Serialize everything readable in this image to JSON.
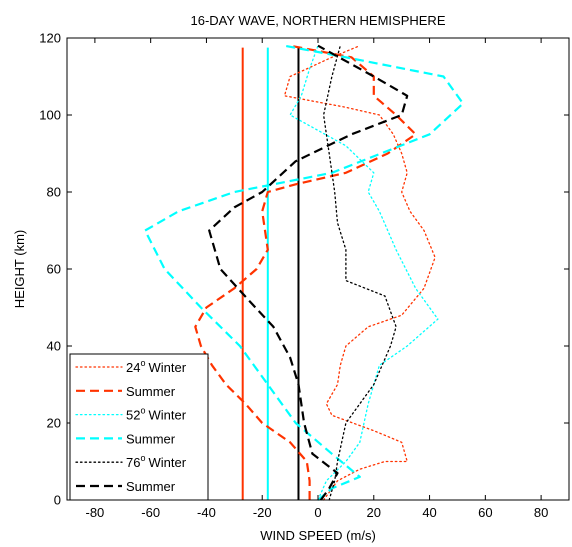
{
  "chart_data": {
    "type": "line",
    "title": "16-DAY WAVE, NORTHERN HEMISPHERE",
    "xlabel": "WIND SPEED (m/s)",
    "ylabel": "HEIGHT (km)",
    "xlim": [
      -90,
      90
    ],
    "ylim": [
      0,
      120
    ],
    "xticks": [
      -80,
      -60,
      -40,
      -20,
      0,
      20,
      40,
      60,
      80
    ],
    "yticks": [
      0,
      20,
      40,
      60,
      80,
      100,
      120
    ],
    "grid": false,
    "legend_position": "bottom-left",
    "series": [
      {
        "name": "Winter",
        "latitude": "24",
        "degree": "o",
        "color": "#ff3300",
        "style": "dotted",
        "points": [
          [
            2,
            0
          ],
          [
            4,
            2
          ],
          [
            7,
            5
          ],
          [
            15,
            8
          ],
          [
            24,
            10
          ],
          [
            32,
            10
          ],
          [
            30,
            15
          ],
          [
            20,
            18
          ],
          [
            5,
            22
          ],
          [
            3,
            25
          ],
          [
            7,
            30
          ],
          [
            8,
            35
          ],
          [
            10,
            40
          ],
          [
            18,
            45
          ],
          [
            30,
            48
          ],
          [
            38,
            55
          ],
          [
            42,
            63
          ],
          [
            38,
            70
          ],
          [
            33,
            75
          ],
          [
            30,
            80
          ],
          [
            32,
            85
          ],
          [
            30,
            90
          ],
          [
            27,
            95
          ],
          [
            22,
            100
          ],
          [
            10,
            102
          ],
          [
            -12,
            105
          ],
          [
            -10,
            110
          ],
          [
            5,
            115
          ],
          [
            15,
            118
          ]
        ]
      },
      {
        "name": "Summer",
        "color": "#ff3300",
        "style": "dashed",
        "points": [
          [
            -3,
            0
          ],
          [
            -3,
            5
          ],
          [
            -4,
            10
          ],
          [
            -10,
            15
          ],
          [
            -20,
            20
          ],
          [
            -26,
            25
          ],
          [
            -33,
            30
          ],
          [
            -38,
            35
          ],
          [
            -42,
            40
          ],
          [
            -44,
            45
          ],
          [
            -40,
            50
          ],
          [
            -30,
            55
          ],
          [
            -22,
            60
          ],
          [
            -18,
            65
          ],
          [
            -19,
            70
          ],
          [
            -20,
            75
          ],
          [
            -18,
            80
          ],
          [
            -8,
            82
          ],
          [
            10,
            85
          ],
          [
            25,
            90
          ],
          [
            35,
            95
          ],
          [
            28,
            100
          ],
          [
            20,
            105
          ],
          [
            20,
            110
          ],
          [
            12,
            115
          ],
          [
            -10,
            118
          ]
        ]
      },
      {
        "name": "Winter",
        "latitude": "52",
        "degree": "o",
        "color": "#00ffff",
        "style": "dotted",
        "points": [
          [
            0,
            0
          ],
          [
            3,
            5
          ],
          [
            10,
            10
          ],
          [
            15,
            15
          ],
          [
            18,
            25
          ],
          [
            22,
            35
          ],
          [
            32,
            40
          ],
          [
            43,
            47
          ],
          [
            35,
            55
          ],
          [
            28,
            65
          ],
          [
            22,
            75
          ],
          [
            18,
            80
          ],
          [
            20,
            85
          ],
          [
            10,
            92
          ],
          [
            -10,
            100
          ],
          [
            -6,
            105
          ],
          [
            -3,
            112
          ],
          [
            0,
            118
          ]
        ]
      },
      {
        "name": "Summer",
        "color": "#00ffff",
        "style": "dashed",
        "points": [
          [
            0,
            0
          ],
          [
            5,
            3
          ],
          [
            15,
            6
          ],
          [
            5,
            12
          ],
          [
            -8,
            20
          ],
          [
            -18,
            30
          ],
          [
            -28,
            40
          ],
          [
            -42,
            50
          ],
          [
            -55,
            60
          ],
          [
            -62,
            70
          ],
          [
            -50,
            75
          ],
          [
            -30,
            80
          ],
          [
            5,
            85
          ],
          [
            40,
            95
          ],
          [
            52,
            103
          ],
          [
            45,
            110
          ],
          [
            10,
            115
          ],
          [
            -12,
            118
          ]
        ]
      },
      {
        "name": "Winter",
        "latitude": "76",
        "degree": "o",
        "color": "#000000",
        "style": "dotted",
        "points": [
          [
            4,
            0
          ],
          [
            6,
            5
          ],
          [
            7,
            10
          ],
          [
            10,
            20
          ],
          [
            20,
            30
          ],
          [
            26,
            40
          ],
          [
            28,
            45
          ],
          [
            24,
            53
          ],
          [
            10,
            57
          ],
          [
            10,
            65
          ],
          [
            7,
            72
          ],
          [
            6,
            80
          ],
          [
            4,
            90
          ],
          [
            2,
            100
          ],
          [
            5,
            110
          ],
          [
            8,
            118
          ]
        ]
      },
      {
        "name": "Summer",
        "color": "#000000",
        "style": "dashed",
        "points": [
          [
            1,
            0
          ],
          [
            4,
            3
          ],
          [
            7,
            7
          ],
          [
            -2,
            12
          ],
          [
            -5,
            20
          ],
          [
            -7,
            30
          ],
          [
            -10,
            37
          ],
          [
            -16,
            45
          ],
          [
            -25,
            52
          ],
          [
            -35,
            60
          ],
          [
            -39,
            70
          ],
          [
            -30,
            76
          ],
          [
            -20,
            80
          ],
          [
            -8,
            88
          ],
          [
            12,
            95
          ],
          [
            30,
            100
          ],
          [
            32,
            105
          ],
          [
            20,
            110
          ],
          [
            0,
            118
          ]
        ]
      }
    ],
    "vertical_lines": [
      {
        "x": -27,
        "color": "#ff3300"
      },
      {
        "x": -18,
        "color": "#00ffff"
      },
      {
        "x": -7,
        "color": "#000000"
      }
    ]
  }
}
